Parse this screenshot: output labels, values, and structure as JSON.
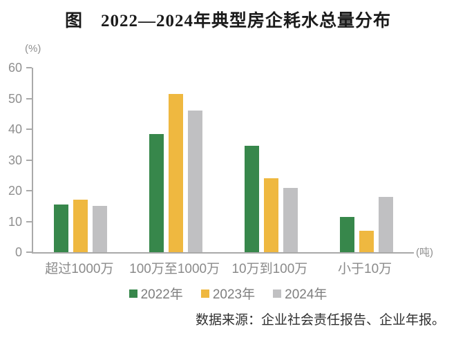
{
  "title": "图　2022—2024年典型房企耗水总量分布",
  "y_axis_unit": "(%)",
  "x_axis_unit": "(吨)",
  "source": "数据来源：企业社会责任报告、企业年报。",
  "colors": {
    "series_2022": "#37874B",
    "series_2023": "#EFB840",
    "series_2024": "#C0C0C2",
    "axis": "#a9a9a9",
    "tick_label": "#8f8f8f",
    "category_label": "#8a8a8a",
    "legend_label": "#7e7e7e"
  },
  "legend": [
    {
      "label": "2022年",
      "color": "#37874B"
    },
    {
      "label": "2023年",
      "color": "#EFB840"
    },
    {
      "label": "2024年",
      "color": "#C0C0C2"
    }
  ],
  "chart_data": {
    "type": "bar",
    "title": "图　2022—2024年典型房企耗水总量分布",
    "categories": [
      "超过1000万",
      "100万至1000万",
      "10万到100万",
      "小于10万"
    ],
    "series": [
      {
        "name": "2022年",
        "color": "#37874B",
        "values": [
          15.5,
          38.5,
          34.5,
          11.5
        ]
      },
      {
        "name": "2023年",
        "color": "#EFB840",
        "values": [
          17,
          51.5,
          24,
          7
        ]
      },
      {
        "name": "2024年",
        "color": "#C0C0C2",
        "values": [
          15,
          46,
          21,
          18
        ]
      }
    ],
    "ylabel": "(%)",
    "xlabel": "(吨)",
    "ylim": [
      0,
      60
    ],
    "yticks": [
      0,
      10,
      20,
      30,
      40,
      50,
      60
    ],
    "grid": false,
    "legend_position": "bottom"
  }
}
